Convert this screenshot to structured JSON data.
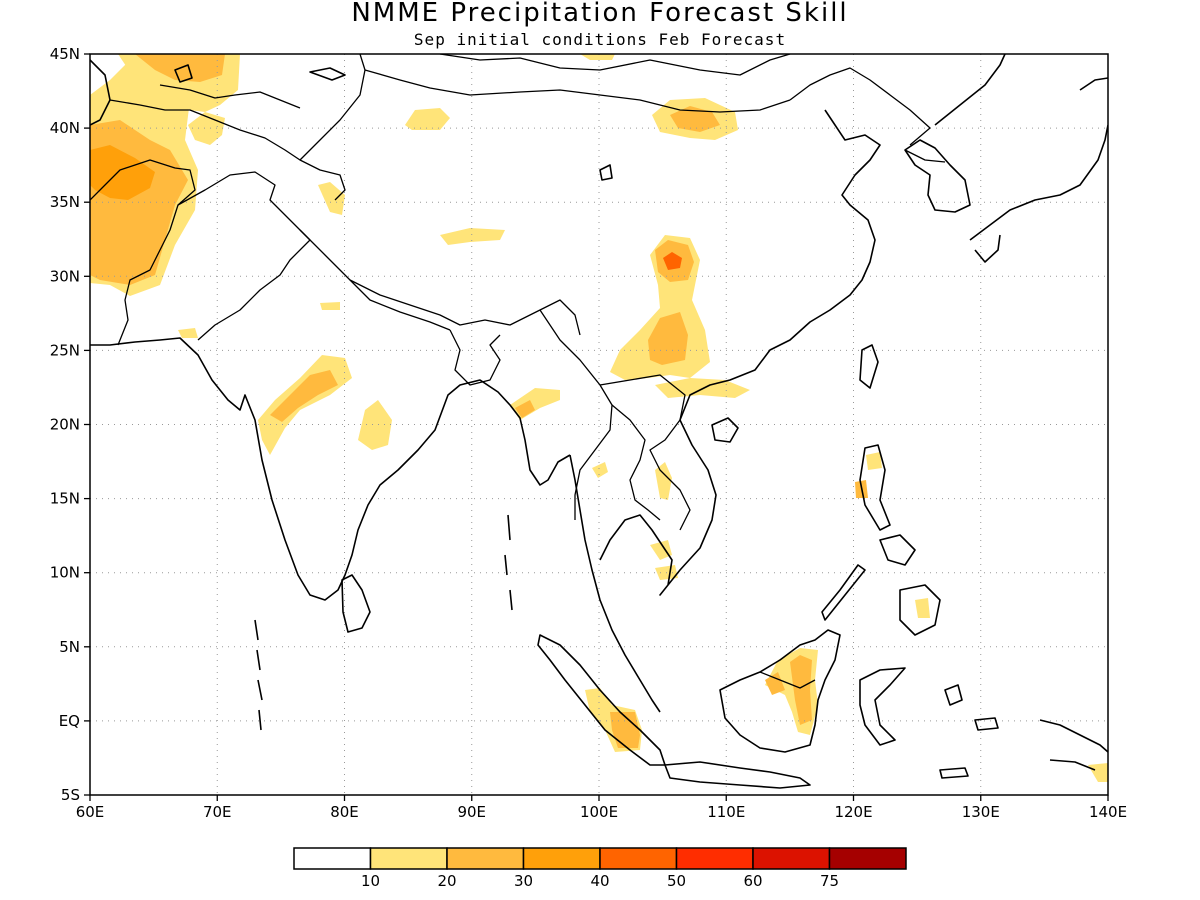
{
  "title": "NMME Precipitation Forecast Skill",
  "subtitle": "Sep initial conditions  Feb Forecast",
  "map": {
    "lon_range": [
      60,
      140
    ],
    "lat_range": [
      -5,
      45
    ],
    "lon_ticks": [
      {
        "value": 60,
        "label": "60E"
      },
      {
        "value": 70,
        "label": "70E"
      },
      {
        "value": 80,
        "label": "80E"
      },
      {
        "value": 90,
        "label": "90E"
      },
      {
        "value": 100,
        "label": "100E"
      },
      {
        "value": 110,
        "label": "110E"
      },
      {
        "value": 120,
        "label": "120E"
      },
      {
        "value": 130,
        "label": "130E"
      },
      {
        "value": 140,
        "label": "140E"
      }
    ],
    "lat_ticks": [
      {
        "value": 45,
        "label": "45N"
      },
      {
        "value": 40,
        "label": "40N"
      },
      {
        "value": 35,
        "label": "35N"
      },
      {
        "value": 30,
        "label": "30N"
      },
      {
        "value": 25,
        "label": "25N"
      },
      {
        "value": 20,
        "label": "20N"
      },
      {
        "value": 15,
        "label": "15N"
      },
      {
        "value": 10,
        "label": "10N"
      },
      {
        "value": 5,
        "label": "5N"
      },
      {
        "value": 0,
        "label": "EQ"
      },
      {
        "value": -5,
        "label": "5S"
      }
    ],
    "grid": true
  },
  "colorbar": {
    "colors": [
      "#ffffff",
      "#ffe479",
      "#ffba3e",
      "#ffa00a",
      "#ff6400",
      "#ff2d00",
      "#dc1200",
      "#a50000"
    ],
    "labels": [
      "10",
      "20",
      "30",
      "40",
      "50",
      "60",
      "75"
    ]
  }
}
